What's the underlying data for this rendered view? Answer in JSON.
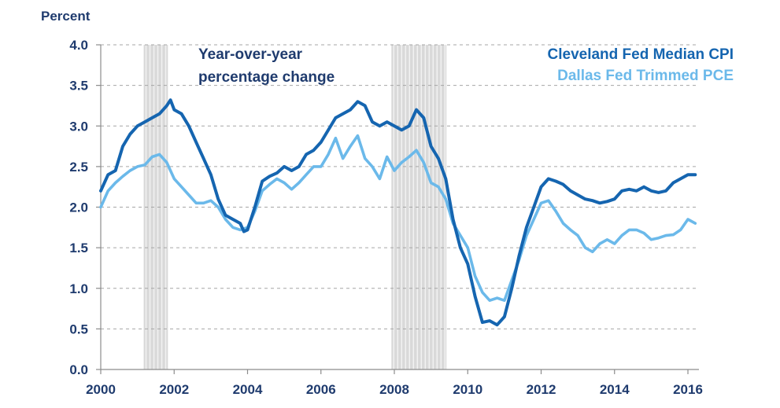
{
  "chart_data": {
    "type": "line",
    "ylabel": "Percent",
    "annotation": [
      "Year-over-year",
      "percentage change"
    ],
    "xlim": [
      2000,
      2016.3
    ],
    "ylim": [
      0,
      4
    ],
    "x_ticks": [
      "2000",
      "2002",
      "2004",
      "2006",
      "2008",
      "2010",
      "2012",
      "2014",
      "2016"
    ],
    "y_ticks": [
      "0.0",
      "0.5",
      "1.0",
      "1.5",
      "2.0",
      "2.5",
      "3.0",
      "3.5",
      "4.0"
    ],
    "grid": "horizontal dashed",
    "legend_position": "top-right",
    "recession_bands": [
      [
        2001.17,
        2001.83
      ],
      [
        2007.92,
        2009.42
      ]
    ],
    "series": [
      {
        "name": "Cleveland Fed Median CPI",
        "color": "#1565b0",
        "points": [
          [
            2000.0,
            2.2
          ],
          [
            2000.2,
            2.4
          ],
          [
            2000.4,
            2.45
          ],
          [
            2000.6,
            2.75
          ],
          [
            2000.8,
            2.9
          ],
          [
            2001.0,
            3.0
          ],
          [
            2001.2,
            3.05
          ],
          [
            2001.4,
            3.1
          ],
          [
            2001.6,
            3.15
          ],
          [
            2001.8,
            3.25
          ],
          [
            2001.9,
            3.32
          ],
          [
            2002.0,
            3.2
          ],
          [
            2002.2,
            3.15
          ],
          [
            2002.4,
            3.0
          ],
          [
            2002.6,
            2.8
          ],
          [
            2002.8,
            2.6
          ],
          [
            2003.0,
            2.4
          ],
          [
            2003.2,
            2.1
          ],
          [
            2003.4,
            1.9
          ],
          [
            2003.6,
            1.85
          ],
          [
            2003.8,
            1.8
          ],
          [
            2003.9,
            1.7
          ],
          [
            2004.0,
            1.72
          ],
          [
            2004.2,
            2.0
          ],
          [
            2004.4,
            2.32
          ],
          [
            2004.6,
            2.38
          ],
          [
            2004.8,
            2.42
          ],
          [
            2005.0,
            2.5
          ],
          [
            2005.2,
            2.45
          ],
          [
            2005.4,
            2.5
          ],
          [
            2005.6,
            2.65
          ],
          [
            2005.8,
            2.7
          ],
          [
            2006.0,
            2.8
          ],
          [
            2006.2,
            2.95
          ],
          [
            2006.4,
            3.1
          ],
          [
            2006.6,
            3.15
          ],
          [
            2006.8,
            3.2
          ],
          [
            2007.0,
            3.3
          ],
          [
            2007.2,
            3.25
          ],
          [
            2007.4,
            3.05
          ],
          [
            2007.6,
            3.0
          ],
          [
            2007.8,
            3.05
          ],
          [
            2008.0,
            3.0
          ],
          [
            2008.2,
            2.95
          ],
          [
            2008.4,
            3.0
          ],
          [
            2008.6,
            3.2
          ],
          [
            2008.8,
            3.1
          ],
          [
            2009.0,
            2.75
          ],
          [
            2009.2,
            2.6
          ],
          [
            2009.4,
            2.35
          ],
          [
            2009.6,
            1.85
          ],
          [
            2009.8,
            1.5
          ],
          [
            2010.0,
            1.3
          ],
          [
            2010.2,
            0.9
          ],
          [
            2010.4,
            0.58
          ],
          [
            2010.6,
            0.6
          ],
          [
            2010.8,
            0.55
          ],
          [
            2011.0,
            0.65
          ],
          [
            2011.2,
            1.0
          ],
          [
            2011.4,
            1.4
          ],
          [
            2011.6,
            1.75
          ],
          [
            2011.8,
            2.0
          ],
          [
            2012.0,
            2.25
          ],
          [
            2012.2,
            2.35
          ],
          [
            2012.4,
            2.32
          ],
          [
            2012.6,
            2.28
          ],
          [
            2012.8,
            2.2
          ],
          [
            2013.0,
            2.15
          ],
          [
            2013.2,
            2.1
          ],
          [
            2013.4,
            2.08
          ],
          [
            2013.6,
            2.05
          ],
          [
            2013.8,
            2.07
          ],
          [
            2014.0,
            2.1
          ],
          [
            2014.2,
            2.2
          ],
          [
            2014.4,
            2.22
          ],
          [
            2014.6,
            2.2
          ],
          [
            2014.8,
            2.25
          ],
          [
            2015.0,
            2.2
          ],
          [
            2015.2,
            2.18
          ],
          [
            2015.4,
            2.2
          ],
          [
            2015.6,
            2.3
          ],
          [
            2015.8,
            2.35
          ],
          [
            2016.0,
            2.4
          ],
          [
            2016.2,
            2.4
          ]
        ]
      },
      {
        "name": "Dallas Fed Trimmed PCE",
        "color": "#6bb9ea",
        "points": [
          [
            2000.0,
            2.0
          ],
          [
            2000.2,
            2.2
          ],
          [
            2000.4,
            2.3
          ],
          [
            2000.6,
            2.38
          ],
          [
            2000.8,
            2.45
          ],
          [
            2001.0,
            2.5
          ],
          [
            2001.2,
            2.52
          ],
          [
            2001.4,
            2.62
          ],
          [
            2001.6,
            2.65
          ],
          [
            2001.8,
            2.55
          ],
          [
            2002.0,
            2.35
          ],
          [
            2002.2,
            2.25
          ],
          [
            2002.4,
            2.15
          ],
          [
            2002.6,
            2.05
          ],
          [
            2002.8,
            2.05
          ],
          [
            2003.0,
            2.08
          ],
          [
            2003.2,
            2.0
          ],
          [
            2003.4,
            1.85
          ],
          [
            2003.6,
            1.75
          ],
          [
            2003.8,
            1.72
          ],
          [
            2004.0,
            1.75
          ],
          [
            2004.2,
            1.95
          ],
          [
            2004.4,
            2.2
          ],
          [
            2004.6,
            2.28
          ],
          [
            2004.8,
            2.35
          ],
          [
            2005.0,
            2.3
          ],
          [
            2005.2,
            2.22
          ],
          [
            2005.4,
            2.3
          ],
          [
            2005.6,
            2.4
          ],
          [
            2005.8,
            2.5
          ],
          [
            2006.0,
            2.5
          ],
          [
            2006.2,
            2.65
          ],
          [
            2006.4,
            2.85
          ],
          [
            2006.6,
            2.6
          ],
          [
            2006.8,
            2.75
          ],
          [
            2007.0,
            2.88
          ],
          [
            2007.2,
            2.6
          ],
          [
            2007.4,
            2.5
          ],
          [
            2007.6,
            2.35
          ],
          [
            2007.8,
            2.62
          ],
          [
            2008.0,
            2.45
          ],
          [
            2008.2,
            2.55
          ],
          [
            2008.4,
            2.62
          ],
          [
            2008.6,
            2.7
          ],
          [
            2008.8,
            2.55
          ],
          [
            2009.0,
            2.3
          ],
          [
            2009.2,
            2.25
          ],
          [
            2009.4,
            2.1
          ],
          [
            2009.6,
            1.8
          ],
          [
            2009.8,
            1.65
          ],
          [
            2010.0,
            1.5
          ],
          [
            2010.2,
            1.15
          ],
          [
            2010.4,
            0.95
          ],
          [
            2010.6,
            0.85
          ],
          [
            2010.8,
            0.88
          ],
          [
            2011.0,
            0.85
          ],
          [
            2011.2,
            1.1
          ],
          [
            2011.4,
            1.35
          ],
          [
            2011.6,
            1.65
          ],
          [
            2011.8,
            1.85
          ],
          [
            2012.0,
            2.05
          ],
          [
            2012.2,
            2.08
          ],
          [
            2012.4,
            1.95
          ],
          [
            2012.6,
            1.8
          ],
          [
            2012.8,
            1.72
          ],
          [
            2013.0,
            1.65
          ],
          [
            2013.2,
            1.5
          ],
          [
            2013.4,
            1.45
          ],
          [
            2013.6,
            1.55
          ],
          [
            2013.8,
            1.6
          ],
          [
            2014.0,
            1.55
          ],
          [
            2014.2,
            1.65
          ],
          [
            2014.4,
            1.72
          ],
          [
            2014.6,
            1.72
          ],
          [
            2014.8,
            1.68
          ],
          [
            2015.0,
            1.6
          ],
          [
            2015.2,
            1.62
          ],
          [
            2015.4,
            1.65
          ],
          [
            2015.6,
            1.66
          ],
          [
            2015.8,
            1.72
          ],
          [
            2016.0,
            1.85
          ],
          [
            2016.2,
            1.8
          ]
        ]
      }
    ]
  }
}
